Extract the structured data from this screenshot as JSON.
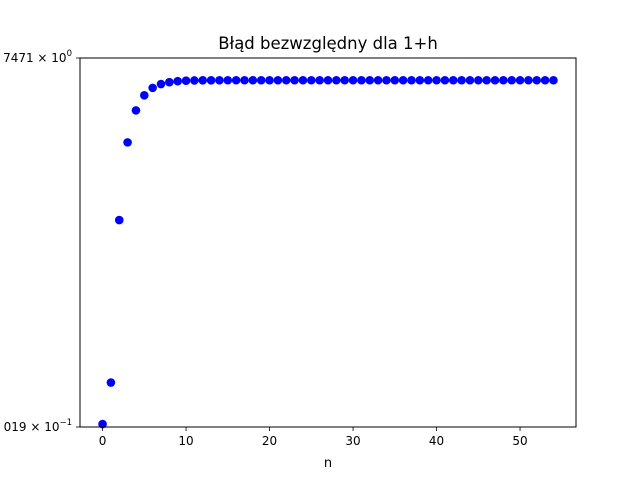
{
  "chart_data": {
    "type": "scatter",
    "title": "Błąd bezwzględny dla 1+h",
    "xlabel": "n",
    "ylabel": "",
    "yscale": "log",
    "grid": false,
    "legend": "none",
    "xlim": [
      -2.7,
      56.7
    ],
    "ylim": [
      0.1019,
      1.7471
    ],
    "x_ticks": [
      0,
      10,
      20,
      30,
      40,
      50
    ],
    "x_tick_labels": [
      "0",
      "10",
      "20",
      "30",
      "40",
      "50"
    ],
    "y_tick_labels": {
      "top": {
        "mantissa": "7471",
        "base": "10",
        "exponent": "0"
      },
      "bottom": {
        "mantissa": "019",
        "base": "10",
        "exponent": "−1"
      }
    },
    "series": [
      {
        "color": "#0000ff",
        "marker": "circle",
        "x": [
          0,
          1,
          2,
          3,
          4,
          5,
          6,
          7,
          8,
          9,
          10,
          11,
          12,
          13,
          14,
          15,
          16,
          17,
          18,
          19,
          20,
          21,
          22,
          23,
          24,
          25,
          26,
          27,
          28,
          29,
          30,
          31,
          32,
          33,
          34,
          35,
          36,
          37,
          38,
          39,
          40,
          41,
          42,
          43,
          44,
          45,
          46,
          47,
          48,
          49,
          50,
          51,
          52,
          53,
          54
        ],
        "y": [
          0.1042,
          0.1435,
          0.5014,
          0.9123,
          1.1671,
          1.3111,
          1.3881,
          1.4294,
          1.4505,
          1.4613,
          1.4667,
          1.4694,
          1.4708,
          1.4714,
          1.4718,
          1.472,
          1.472,
          1.472,
          1.472,
          1.472,
          1.472,
          1.472,
          1.472,
          1.472,
          1.472,
          1.472,
          1.472,
          1.472,
          1.472,
          1.472,
          1.472,
          1.472,
          1.472,
          1.472,
          1.472,
          1.472,
          1.472,
          1.472,
          1.472,
          1.472,
          1.472,
          1.472,
          1.472,
          1.472,
          1.472,
          1.472,
          1.472,
          1.472,
          1.472,
          1.472,
          1.472,
          1.472,
          1.472,
          1.472,
          1.472
        ]
      }
    ]
  }
}
